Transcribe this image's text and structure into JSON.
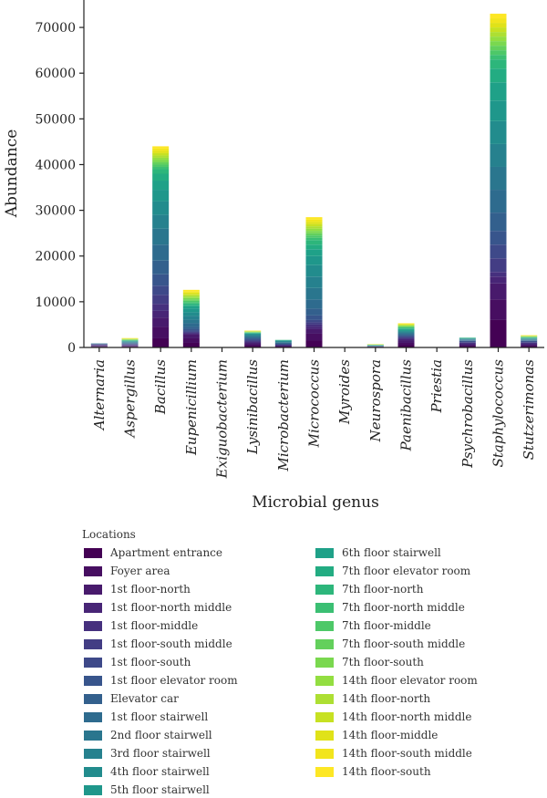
{
  "chart_data": {
    "type": "bar",
    "stacked": true,
    "title": "",
    "xlabel": "Microbial genus",
    "ylabel": "Abundance",
    "ylim": [
      0,
      76000
    ],
    "yticks": [
      0,
      10000,
      20000,
      30000,
      40000,
      50000,
      60000,
      70000
    ],
    "grid": false,
    "legend_title": "Locations",
    "legend_placement": "bottom",
    "categories": [
      "Alternaria",
      "Aspergillus",
      "Bacillus",
      "Eupenicillium",
      "Exiguobacterium",
      "Lysinibacillus",
      "Microbacterium",
      "Micrococcus",
      "Myroides",
      "Neurospora",
      "Paenibacillus",
      "Priestia",
      "Psychrobacillus",
      "Staphylococcus",
      "Stutzerimonas"
    ],
    "series": [
      {
        "name": "Apartment entrance",
        "color": "#440154",
        "values": [
          150,
          150,
          2000,
          1000,
          0,
          300,
          100,
          1500,
          0,
          50,
          500,
          0,
          200,
          6000,
          200
        ]
      },
      {
        "name": "Foyer area",
        "color": "#470e61",
        "values": [
          100,
          100,
          2500,
          1000,
          0,
          300,
          100,
          1500,
          0,
          50,
          500,
          0,
          200,
          4500,
          200
        ]
      },
      {
        "name": "1st floor-north",
        "color": "#481a6c",
        "values": [
          100,
          100,
          2000,
          800,
          0,
          300,
          100,
          1000,
          0,
          30,
          500,
          0,
          200,
          3500,
          200
        ]
      },
      {
        "name": "1st floor-north middle",
        "color": "#482576",
        "values": [
          100,
          100,
          1500,
          200,
          0,
          200,
          100,
          500,
          0,
          30,
          300,
          0,
          200,
          1500,
          200
        ]
      },
      {
        "name": "1st floor-middle",
        "color": "#46307e",
        "values": [
          100,
          100,
          1500,
          200,
          0,
          200,
          100,
          500,
          0,
          30,
          200,
          0,
          200,
          1000,
          200
        ]
      },
      {
        "name": "1st floor-south middle",
        "color": "#433d84",
        "values": [
          100,
          100,
          2000,
          200,
          0,
          200,
          100,
          500,
          0,
          30,
          200,
          0,
          150,
          3000,
          150
        ]
      },
      {
        "name": "1st floor-south",
        "color": "#3e4989",
        "values": [
          50,
          100,
          2000,
          300,
          0,
          200,
          100,
          500,
          0,
          30,
          200,
          0,
          150,
          3000,
          150
        ]
      },
      {
        "name": "1st floor elevator room",
        "color": "#38558c",
        "values": [
          50,
          100,
          2500,
          300,
          0,
          200,
          100,
          1000,
          0,
          30,
          200,
          0,
          150,
          3000,
          150
        ]
      },
      {
        "name": "Elevator car",
        "color": "#33608d",
        "values": [
          50,
          100,
          3000,
          500,
          0,
          200,
          100,
          1500,
          0,
          30,
          200,
          0,
          100,
          4000,
          100
        ]
      },
      {
        "name": "1st floor stairwell",
        "color": "#2e6b8e",
        "values": [
          50,
          100,
          3500,
          800,
          0,
          200,
          150,
          2000,
          0,
          30,
          200,
          0,
          100,
          5000,
          100
        ]
      },
      {
        "name": "2nd floor stairwell",
        "color": "#2a768e",
        "values": [
          50,
          100,
          3500,
          800,
          0,
          200,
          150,
          2500,
          0,
          30,
          200,
          0,
          100,
          5000,
          100
        ]
      },
      {
        "name": "3rd floor stairwell",
        "color": "#26818e",
        "values": [
          0,
          100,
          3000,
          800,
          0,
          200,
          100,
          2500,
          0,
          30,
          200,
          0,
          100,
          5000,
          100
        ]
      },
      {
        "name": "4th floor stairwell",
        "color": "#228c8d",
        "values": [
          0,
          100,
          3000,
          800,
          0,
          200,
          100,
          2500,
          0,
          30,
          200,
          0,
          100,
          5000,
          100
        ]
      },
      {
        "name": "5th floor stairwell",
        "color": "#1f978b",
        "values": [
          0,
          50,
          2500,
          800,
          0,
          100,
          100,
          2000,
          0,
          30,
          200,
          0,
          50,
          4500,
          100
        ]
      },
      {
        "name": "6th floor stairwell",
        "color": "#1fa188",
        "values": [
          0,
          50,
          2000,
          500,
          0,
          100,
          50,
          1500,
          0,
          30,
          200,
          0,
          50,
          4000,
          50
        ]
      },
      {
        "name": "7th floor elevator room",
        "color": "#23ac82",
        "values": [
          0,
          50,
          1500,
          300,
          0,
          50,
          50,
          1000,
          0,
          20,
          150,
          0,
          50,
          3000,
          50
        ]
      },
      {
        "name": "7th floor-north",
        "color": "#2db67b",
        "values": [
          0,
          50,
          1000,
          300,
          0,
          50,
          50,
          1000,
          0,
          20,
          150,
          0,
          50,
          2000,
          50
        ]
      },
      {
        "name": "7th floor-north middle",
        "color": "#3bbf73",
        "values": [
          0,
          50,
          500,
          300,
          0,
          50,
          0,
          500,
          0,
          20,
          100,
          0,
          0,
          1000,
          50
        ]
      },
      {
        "name": "7th floor-middle",
        "color": "#4dc868",
        "values": [
          0,
          50,
          500,
          300,
          0,
          50,
          0,
          500,
          0,
          20,
          100,
          0,
          0,
          1000,
          50
        ]
      },
      {
        "name": "7th floor-south middle",
        "color": "#63d05c",
        "values": [
          0,
          50,
          500,
          300,
          0,
          50,
          0,
          500,
          0,
          20,
          100,
          0,
          0,
          1000,
          50
        ]
      },
      {
        "name": "7th floor-south",
        "color": "#7ad84f",
        "values": [
          0,
          50,
          500,
          300,
          0,
          50,
          0,
          500,
          0,
          20,
          100,
          0,
          0,
          1000,
          50
        ]
      },
      {
        "name": "14th floor elevator room",
        "color": "#93de41",
        "values": [
          0,
          50,
          500,
          300,
          0,
          50,
          0,
          500,
          0,
          20,
          100,
          0,
          0,
          1000,
          50
        ]
      },
      {
        "name": "14th floor-north",
        "color": "#addf33",
        "values": [
          0,
          50,
          500,
          300,
          0,
          50,
          0,
          500,
          0,
          20,
          100,
          0,
          0,
          1000,
          50
        ]
      },
      {
        "name": "14th floor-north middle",
        "color": "#c7e122",
        "values": [
          0,
          50,
          500,
          300,
          0,
          50,
          0,
          500,
          0,
          20,
          100,
          0,
          0,
          1000,
          50
        ]
      },
      {
        "name": "14th floor-middle",
        "color": "#e0e219",
        "values": [
          0,
          50,
          500,
          300,
          0,
          50,
          0,
          500,
          0,
          20,
          100,
          0,
          0,
          1000,
          50
        ]
      },
      {
        "name": "14th floor-south middle",
        "color": "#f2e51d",
        "values": [
          0,
          50,
          500,
          300,
          0,
          50,
          0,
          500,
          0,
          20,
          100,
          0,
          0,
          1000,
          50
        ]
      },
      {
        "name": "14th floor-south",
        "color": "#fde725",
        "values": [
          0,
          50,
          500,
          300,
          0,
          50,
          0,
          500,
          0,
          20,
          100,
          0,
          0,
          1000,
          50
        ]
      }
    ]
  }
}
